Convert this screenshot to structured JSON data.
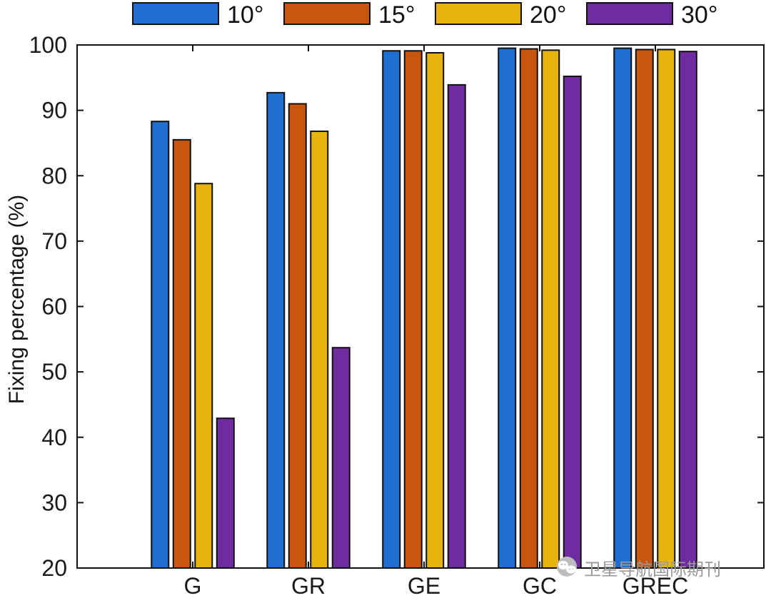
{
  "chart_data": {
    "type": "bar",
    "title": "",
    "xlabel": "",
    "ylabel": "Fixing percentage (%)",
    "ylim": [
      20,
      100
    ],
    "yticks": [
      20,
      30,
      40,
      50,
      60,
      70,
      80,
      90,
      100
    ],
    "categories": [
      "G",
      "GR",
      "GE",
      "GC",
      "GREC"
    ],
    "legend_position": "top",
    "series": [
      {
        "name": "10°",
        "color": "#1f6fd2",
        "values": [
          88.3,
          92.7,
          99.1,
          99.5,
          99.5
        ]
      },
      {
        "name": "15°",
        "color": "#c9560e",
        "values": [
          85.5,
          91.0,
          99.1,
          99.4,
          99.3
        ]
      },
      {
        "name": "20°",
        "color": "#e8b30f",
        "values": [
          78.8,
          86.8,
          98.8,
          99.2,
          99.3
        ]
      },
      {
        "name": "30°",
        "color": "#6f2c9e",
        "values": [
          42.9,
          53.7,
          93.9,
          95.2,
          99.0
        ]
      }
    ]
  },
  "watermark": {
    "text": "卫星导航国际期刊",
    "icon": "wechat-icon"
  }
}
